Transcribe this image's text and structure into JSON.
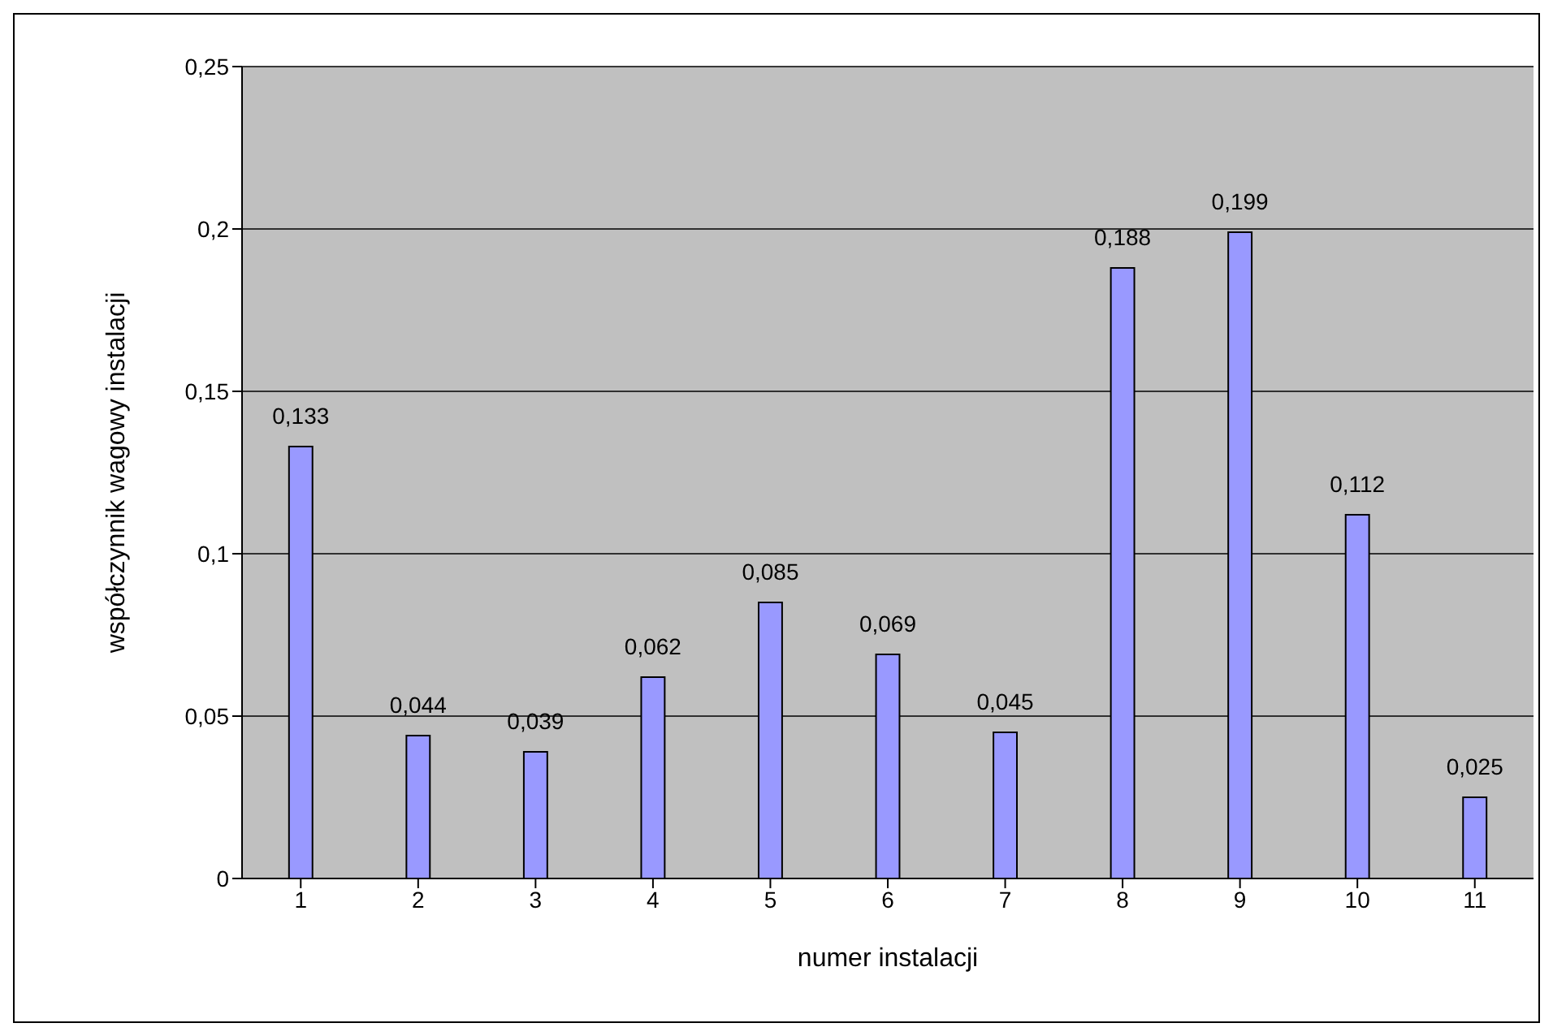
{
  "chart_data": {
    "type": "bar",
    "xlabel": "numer instalacji",
    "ylabel": "współczynnik wagowy instalacji",
    "categories": [
      "1",
      "2",
      "3",
      "4",
      "5",
      "6",
      "7",
      "8",
      "9",
      "10",
      "11"
    ],
    "values": [
      0.133,
      0.044,
      0.039,
      0.062,
      0.085,
      0.069,
      0.045,
      0.188,
      0.199,
      0.112,
      0.025
    ],
    "value_labels": [
      "0,133",
      "0,044",
      "0,039",
      "0,062",
      "0,085",
      "0,069",
      "0,045",
      "0,188",
      "0,199",
      "0,112",
      "0,025"
    ],
    "color": "#9999ff",
    "ylim": [
      0,
      0.25
    ],
    "yticks": [
      {
        "value": 0,
        "label": "0"
      },
      {
        "value": 0.05,
        "label": "0,05"
      },
      {
        "value": 0.1,
        "label": "0,1"
      },
      {
        "value": 0.15,
        "label": "0,15"
      },
      {
        "value": 0.2,
        "label": "0,2"
      },
      {
        "value": 0.25,
        "label": "0,25"
      }
    ],
    "grid": "y",
    "legend": false
  }
}
